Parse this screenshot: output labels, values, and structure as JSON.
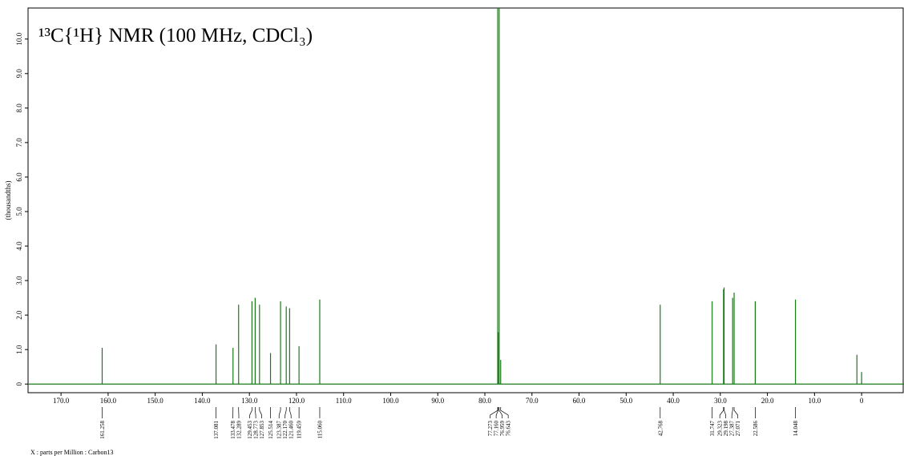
{
  "chart_data": {
    "type": "stick",
    "title": "¹³C{¹H} NMR (100 MHz, CDCl₃)",
    "y_label": "(thousandths)",
    "x_label": "X : parts per Million : Carbon13",
    "color": "#1a7a1a",
    "xlim": [
      177,
      -9
    ],
    "ylim": [
      -0.25,
      10.9
    ],
    "xticks": [
      {
        "value": 170,
        "label": "170.0"
      },
      {
        "value": 160,
        "label": "160.0"
      },
      {
        "value": 150,
        "label": "150.0"
      },
      {
        "value": 140,
        "label": "140.0"
      },
      {
        "value": 130,
        "label": "130.0"
      },
      {
        "value": 120,
        "label": "120.0"
      },
      {
        "value": 110,
        "label": "110.0"
      },
      {
        "value": 100,
        "label": "100.0"
      },
      {
        "value": 90,
        "label": "90.0"
      },
      {
        "value": 80,
        "label": "80.0"
      },
      {
        "value": 70,
        "label": "70.0"
      },
      {
        "value": 60,
        "label": "60.0"
      },
      {
        "value": 50,
        "label": "50.0"
      },
      {
        "value": 40,
        "label": "40.0"
      },
      {
        "value": 30,
        "label": "30.0"
      },
      {
        "value": 20,
        "label": "20.0"
      },
      {
        "value": 10,
        "label": "10.0"
      },
      0
    ],
    "yticks": [
      0,
      {
        "value": 1,
        "label": "1.0"
      },
      {
        "value": 2,
        "label": "2.0"
      },
      {
        "value": 3,
        "label": "3.0"
      },
      {
        "value": 4,
        "label": "4.0"
      },
      {
        "value": 5,
        "label": "5.0"
      },
      {
        "value": 6,
        "label": "6.0"
      },
      {
        "value": 7,
        "label": "7.0"
      },
      {
        "value": 8,
        "label": "8.0"
      },
      {
        "value": 9,
        "label": "9.0"
      },
      {
        "value": 10,
        "label": "10.0"
      }
    ],
    "x": [
      161.258,
      137.081,
      133.478,
      132.289,
      129.453,
      128.773,
      127.853,
      125.514,
      123.387,
      122.17,
      121.46,
      119.459,
      115.06,
      77.273,
      77.16,
      76.959,
      76.643,
      42.768,
      31.747,
      29.323,
      29.198,
      27.387,
      27.071,
      22.586,
      14.048,
      1.0,
      0.0
    ],
    "values": [
      1.05,
      1.15,
      1.05,
      2.3,
      2.4,
      2.5,
      2.3,
      0.9,
      2.4,
      2.25,
      2.2,
      1.1,
      2.45,
      11,
      1.5,
      11,
      0.7,
      2.3,
      2.4,
      2.75,
      2.8,
      2.5,
      2.65,
      2.4,
      2.45,
      0.85,
      0.35
    ],
    "peak_labels": [
      "161.258",
      "137.081",
      "133.478",
      "132.289",
      "129.453",
      "128.773",
      "127.853",
      "125.514",
      "123.387",
      "122.170",
      "121.460",
      "119.459",
      "115.060",
      "77.273",
      "77.160",
      "76.959",
      "76.643",
      "42.768",
      "31.747",
      "29.323",
      "29.198",
      "27.387",
      "27.071",
      "22.586",
      "14.048",
      null,
      null
    ]
  }
}
